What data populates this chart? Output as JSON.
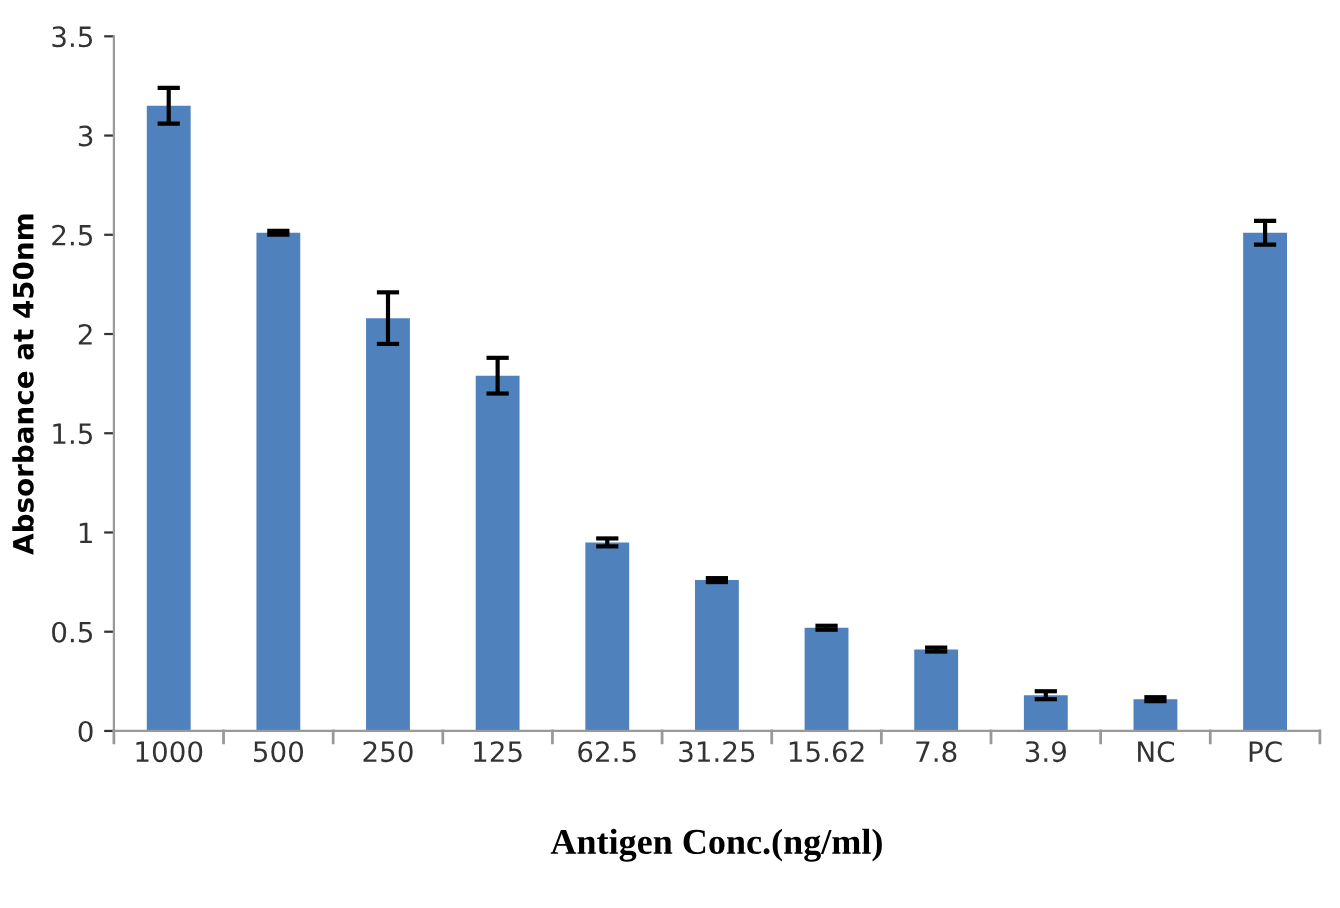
{
  "chart_data": {
    "type": "bar",
    "xlabel": "Antigen Conc.(ng/ml)",
    "ylabel": "Absorbance at 450nm",
    "categories": [
      "1000",
      "500",
      "250",
      "125",
      "62.5",
      "31.25",
      "15.62",
      "7.8",
      "3.9",
      "NC",
      "PC"
    ],
    "values": [
      3.15,
      2.51,
      2.08,
      1.79,
      0.95,
      0.76,
      0.52,
      0.41,
      0.18,
      0.16,
      2.51
    ],
    "errors": [
      0.09,
      0.01,
      0.13,
      0.09,
      0.02,
      0.01,
      0.01,
      0.01,
      0.02,
      0.01,
      0.06
    ],
    "color": "#4f81bd",
    "ylim": [
      0,
      3.5
    ],
    "yticks": [
      0,
      0.5,
      1,
      1.5,
      2,
      2.5,
      3,
      3.5
    ],
    "grid": false,
    "legend": false
  }
}
